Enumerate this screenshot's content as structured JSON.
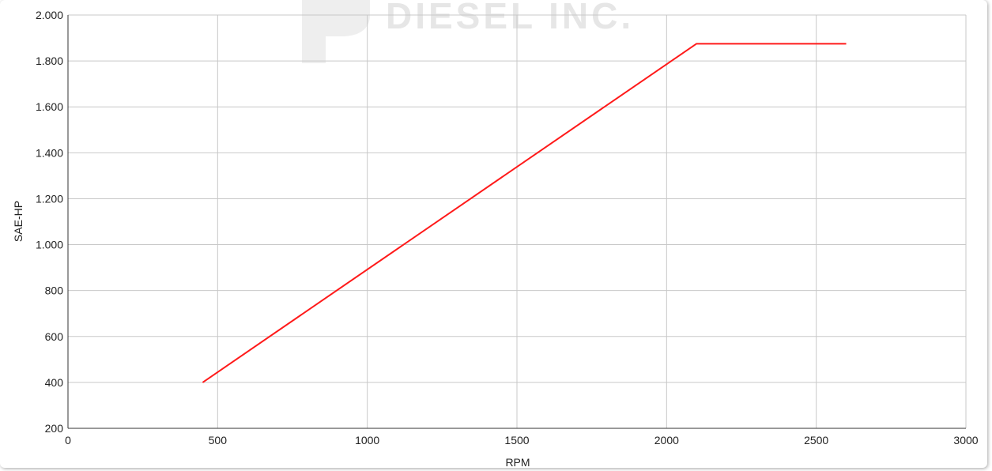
{
  "chart_data": {
    "type": "line",
    "title": "",
    "xlabel": "RPM",
    "ylabel": "SAE-HP",
    "xlim": [
      0,
      3000
    ],
    "ylim": [
      200,
      2000
    ],
    "x_ticks": [
      0,
      500,
      1000,
      1500,
      2000,
      2500,
      3000
    ],
    "x_tick_labels": [
      "0",
      "500",
      "1000",
      "1500",
      "2000",
      "2500",
      "3000"
    ],
    "y_ticks": [
      200,
      400,
      600,
      800,
      1000,
      1200,
      1400,
      1600,
      1800,
      2000
    ],
    "y_tick_labels": [
      "200",
      "400",
      "600",
      "800",
      "1.000",
      "1.200",
      "1.400",
      "1.600",
      "1.800",
      "2.000"
    ],
    "grid": true,
    "legend": "none",
    "series": [
      {
        "color": "#ff1a1a",
        "x": [
          450,
          2100,
          2600
        ],
        "y": [
          400,
          1875,
          1875
        ]
      }
    ],
    "watermark": "DIESEL INC."
  }
}
